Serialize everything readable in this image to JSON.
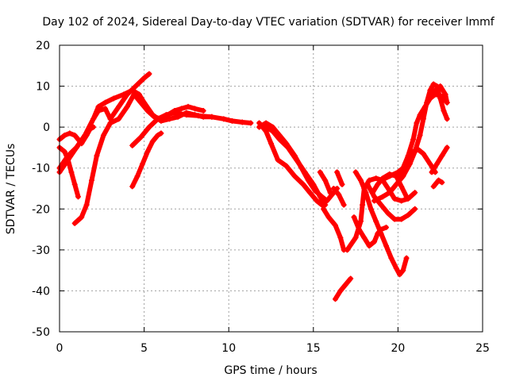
{
  "chart_data": {
    "type": "scatter",
    "title": "Day 102 of 2024, Sidereal Day-to-day VTEC variation (SDTVAR) for receiver lmmf",
    "xlabel": "GPS time / hours",
    "ylabel": "SDTVAR / TECUs",
    "xlim": [
      0,
      25
    ],
    "ylim": [
      -50,
      20
    ],
    "xticks": [
      0,
      5,
      10,
      15,
      20,
      25
    ],
    "yticks": [
      -50,
      -40,
      -30,
      -20,
      -10,
      0,
      10,
      20
    ],
    "grid": true,
    "marker": "+",
    "color": "#ff0000",
    "series": [
      {
        "name": "arc-1",
        "points": [
          [
            0,
            -3
          ],
          [
            0.3,
            -2
          ],
          [
            0.6,
            -1.5
          ],
          [
            0.9,
            -2
          ],
          [
            1.1,
            -3
          ],
          [
            1.3,
            -4
          ],
          [
            1.6,
            -2
          ],
          [
            1.8,
            -0.5
          ],
          [
            2.0,
            0
          ]
        ]
      },
      {
        "name": "arc-2",
        "points": [
          [
            0,
            -5
          ],
          [
            0.3,
            -6
          ],
          [
            0.5,
            -8
          ],
          [
            0.7,
            -11
          ],
          [
            0.9,
            -14
          ],
          [
            1.1,
            -17
          ]
        ]
      },
      {
        "name": "arc-3",
        "points": [
          [
            0,
            -11
          ],
          [
            0.5,
            -8
          ],
          [
            1.0,
            -5
          ],
          [
            1.5,
            -2
          ],
          [
            2.0,
            2
          ],
          [
            2.3,
            4
          ],
          [
            2.7,
            4.5
          ],
          [
            3.0,
            2
          ],
          [
            3.5,
            5
          ],
          [
            4.0,
            8
          ],
          [
            4.5,
            10
          ],
          [
            5.0,
            12
          ],
          [
            5.3,
            13
          ]
        ]
      },
      {
        "name": "arc-4",
        "points": [
          [
            0,
            -10
          ],
          [
            0.5,
            -7
          ],
          [
            1.0,
            -5
          ],
          [
            1.5,
            -2
          ],
          [
            2.0,
            2
          ],
          [
            2.3,
            5
          ],
          [
            2.7,
            6
          ],
          [
            3.2,
            7
          ],
          [
            3.8,
            8
          ],
          [
            4.3,
            9
          ],
          [
            4.7,
            8
          ],
          [
            5.0,
            6
          ],
          [
            5.5,
            3
          ],
          [
            6.0,
            1.5
          ],
          [
            6.5,
            2
          ],
          [
            7.0,
            2.5
          ],
          [
            7.5,
            3.5
          ],
          [
            8.0,
            3
          ],
          [
            8.5,
            2.5
          ],
          [
            9.0,
            2.5
          ]
        ]
      },
      {
        "name": "arc-5",
        "points": [
          [
            0.9,
            -23.5
          ],
          [
            1.3,
            -22
          ],
          [
            1.6,
            -19
          ],
          [
            1.9,
            -13
          ],
          [
            2.2,
            -7
          ],
          [
            2.6,
            -2
          ],
          [
            3.0,
            1
          ],
          [
            3.5,
            2
          ],
          [
            4.0,
            5
          ],
          [
            4.4,
            8
          ],
          [
            4.8,
            6
          ],
          [
            5.2,
            4
          ],
          [
            5.6,
            2.5
          ],
          [
            6.0,
            2
          ],
          [
            6.4,
            3
          ],
          [
            6.8,
            4
          ],
          [
            7.2,
            4.5
          ],
          [
            7.6,
            5
          ],
          [
            8.0,
            4.5
          ],
          [
            8.5,
            4
          ]
        ]
      },
      {
        "name": "arc-6",
        "points": [
          [
            4.3,
            -14.5
          ],
          [
            4.6,
            -12
          ],
          [
            4.9,
            -9
          ],
          [
            5.2,
            -6
          ],
          [
            5.5,
            -3.5
          ],
          [
            5.8,
            -2
          ],
          [
            6.0,
            -1.5
          ]
        ]
      },
      {
        "name": "arc-7",
        "points": [
          [
            4.3,
            -4.5
          ],
          [
            4.8,
            -2.5
          ],
          [
            5.3,
            0
          ],
          [
            5.8,
            2
          ],
          [
            6.3,
            3
          ],
          [
            6.8,
            3.5
          ],
          [
            7.5,
            3
          ],
          [
            8.2,
            2.8
          ],
          [
            9.0,
            2.5
          ],
          [
            9.7,
            2
          ],
          [
            10.2,
            1.5
          ],
          [
            10.8,
            1.2
          ],
          [
            11.3,
            1
          ]
        ]
      },
      {
        "name": "arc-8",
        "points": [
          [
            11.8,
            0
          ],
          [
            12.2,
            1
          ],
          [
            12.6,
            0
          ],
          [
            13.0,
            -2
          ],
          [
            13.4,
            -4
          ],
          [
            13.9,
            -7
          ],
          [
            14.3,
            -10
          ],
          [
            14.7,
            -13
          ],
          [
            15.1,
            -15.5
          ],
          [
            15.5,
            -17
          ],
          [
            15.8,
            -18
          ],
          [
            16.1,
            -16.5
          ],
          [
            16.4,
            -15
          ]
        ]
      },
      {
        "name": "arc-9",
        "points": [
          [
            11.8,
            1
          ],
          [
            12.2,
            -1
          ],
          [
            12.5,
            -4
          ],
          [
            12.9,
            -8
          ],
          [
            13.4,
            -9.5
          ],
          [
            13.9,
            -12
          ],
          [
            14.4,
            -14
          ],
          [
            14.8,
            -16
          ],
          [
            15.2,
            -18
          ],
          [
            15.5,
            -19
          ]
        ]
      },
      {
        "name": "arc-10",
        "points": [
          [
            12.2,
            0
          ],
          [
            12.6,
            -1
          ],
          [
            13.0,
            -3
          ],
          [
            13.5,
            -5
          ],
          [
            14.0,
            -8
          ],
          [
            14.5,
            -11
          ],
          [
            15.0,
            -14
          ],
          [
            15.4,
            -17
          ],
          [
            15.7,
            -19
          ]
        ]
      },
      {
        "name": "arc-11",
        "points": [
          [
            15.4,
            -11
          ],
          [
            15.7,
            -13
          ],
          [
            16.0,
            -16
          ]
        ]
      },
      {
        "name": "arc-12",
        "points": [
          [
            15.6,
            -20
          ],
          [
            15.9,
            -22
          ],
          [
            16.3,
            -24
          ],
          [
            16.6,
            -27
          ],
          [
            16.8,
            -30
          ]
        ]
      },
      {
        "name": "arc-13",
        "points": [
          [
            16.3,
            -42
          ],
          [
            16.6,
            -40
          ],
          [
            16.9,
            -38.5
          ],
          [
            17.2,
            -37
          ]
        ]
      },
      {
        "name": "arc-14",
        "points": [
          [
            16.4,
            -11
          ],
          [
            16.7,
            -14
          ]
        ]
      },
      {
        "name": "arc-15",
        "points": [
          [
            16.2,
            -15
          ],
          [
            16.5,
            -16.5
          ],
          [
            16.8,
            -19
          ]
        ]
      },
      {
        "name": "arc-16",
        "points": [
          [
            17.4,
            -22
          ],
          [
            17.7,
            -25
          ],
          [
            18.0,
            -27
          ],
          [
            18.3,
            -29
          ],
          [
            18.6,
            -28
          ],
          [
            18.8,
            -26
          ],
          [
            19.0,
            -25
          ],
          [
            19.3,
            -24.5
          ]
        ]
      },
      {
        "name": "arc-17",
        "points": [
          [
            17.0,
            -30
          ],
          [
            17.5,
            -27
          ],
          [
            17.8,
            -23
          ],
          [
            17.9,
            -19
          ],
          [
            18.0,
            -15
          ],
          [
            18.3,
            -13
          ],
          [
            18.7,
            -12.5
          ],
          [
            19.1,
            -13
          ],
          [
            19.5,
            -15.5
          ],
          [
            19.8,
            -17.5
          ],
          [
            20.2,
            -18
          ],
          [
            20.6,
            -17.5
          ],
          [
            21.0,
            -16
          ]
        ]
      },
      {
        "name": "arc-18",
        "points": [
          [
            17.5,
            -11
          ],
          [
            17.8,
            -13
          ],
          [
            18.1,
            -16
          ],
          [
            18.4,
            -20
          ],
          [
            18.7,
            -23
          ],
          [
            19.0,
            -26
          ],
          [
            19.3,
            -29
          ],
          [
            19.6,
            -32
          ],
          [
            19.9,
            -34.5
          ],
          [
            20.1,
            -36
          ],
          [
            20.3,
            -35
          ],
          [
            20.5,
            -32
          ]
        ]
      },
      {
        "name": "arc-19",
        "points": [
          [
            18.2,
            -14
          ],
          [
            18.6,
            -17
          ],
          [
            19.0,
            -19
          ],
          [
            19.4,
            -21
          ],
          [
            19.8,
            -22.5
          ],
          [
            20.2,
            -22.5
          ],
          [
            20.6,
            -21.5
          ],
          [
            21.0,
            -20
          ]
        ]
      },
      {
        "name": "arc-20",
        "points": [
          [
            18.5,
            -16
          ],
          [
            18.8,
            -14
          ],
          [
            19.1,
            -12.5
          ],
          [
            19.5,
            -11.5
          ],
          [
            19.9,
            -12
          ],
          [
            20.2,
            -14.5
          ],
          [
            20.5,
            -17
          ]
        ]
      },
      {
        "name": "arc-21",
        "points": [
          [
            18.6,
            -18
          ],
          [
            19.1,
            -17
          ],
          [
            19.5,
            -16
          ],
          [
            19.9,
            -14
          ],
          [
            20.3,
            -12
          ],
          [
            20.7,
            -9
          ],
          [
            21.0,
            -6
          ],
          [
            21.3,
            -2
          ],
          [
            21.5,
            2
          ],
          [
            21.7,
            6
          ],
          [
            21.9,
            9
          ],
          [
            22.1,
            10.5
          ],
          [
            22.3,
            10
          ],
          [
            22.5,
            7
          ],
          [
            22.7,
            4
          ],
          [
            22.9,
            2
          ]
        ]
      },
      {
        "name": "arc-22",
        "points": [
          [
            19.0,
            -13
          ],
          [
            19.5,
            -12
          ],
          [
            20.0,
            -11
          ],
          [
            20.3,
            -10
          ],
          [
            20.6,
            -7
          ],
          [
            20.9,
            -3
          ],
          [
            21.1,
            1
          ],
          [
            21.3,
            3
          ],
          [
            21.6,
            5
          ],
          [
            21.9,
            7
          ],
          [
            22.2,
            8
          ],
          [
            22.6,
            7.5
          ],
          [
            22.9,
            6
          ]
        ]
      },
      {
        "name": "arc-23",
        "points": [
          [
            20.0,
            -12
          ],
          [
            20.3,
            -10
          ],
          [
            20.6,
            -8
          ],
          [
            20.9,
            -6
          ],
          [
            21.2,
            -5.5
          ],
          [
            21.5,
            -6.5
          ],
          [
            21.9,
            -9
          ],
          [
            22.2,
            -11
          ]
        ]
      },
      {
        "name": "arc-24",
        "points": [
          [
            21.9,
            7
          ],
          [
            22.2,
            9
          ],
          [
            22.5,
            10
          ],
          [
            22.8,
            8
          ],
          [
            22.9,
            6
          ]
        ]
      },
      {
        "name": "arc-25",
        "points": [
          [
            22.1,
            -14.5
          ],
          [
            22.4,
            -13
          ],
          [
            22.6,
            -13.5
          ]
        ]
      },
      {
        "name": "arc-26",
        "points": [
          [
            22.0,
            -11
          ],
          [
            22.3,
            -9
          ],
          [
            22.6,
            -7
          ],
          [
            22.9,
            -5
          ]
        ]
      }
    ]
  }
}
